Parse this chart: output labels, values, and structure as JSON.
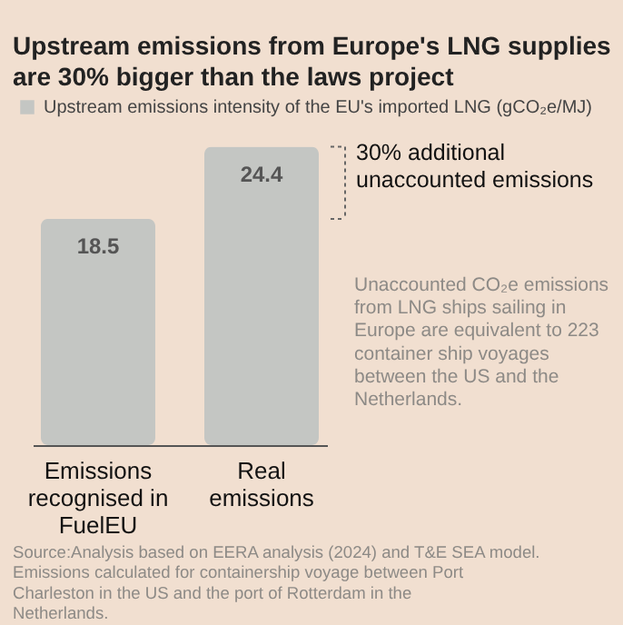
{
  "chart_data": {
    "type": "bar",
    "title": "Upstream emissions from Europe's LNG supplies are 30% bigger than the laws project",
    "categories": [
      "Emissions recognised in FuelEU",
      "Real emissions"
    ],
    "series": [
      {
        "name": "Upstream emissions intensity of the EU's imported LNG (gCO₂e/MJ)",
        "color": "#c4c6c3",
        "values": [
          18.5,
          24.4
        ]
      }
    ],
    "tick_labels": "x",
    "data_labels": true,
    "legend": "top",
    "annotations": [
      "30% additional unaccounted emissions",
      "Unaccounted CO₂e emissions from LNG ships sailing in Europe are equivalent to 223 container ship voyages between the US and the Netherlands.",
      "Source:Analysis based on EERA analysis (2024) and T&E SEA model. Emissions calculated for containership voyage between Port Charleston in the US and the port of Rotterdam in the Netherlands."
    ]
  }
}
